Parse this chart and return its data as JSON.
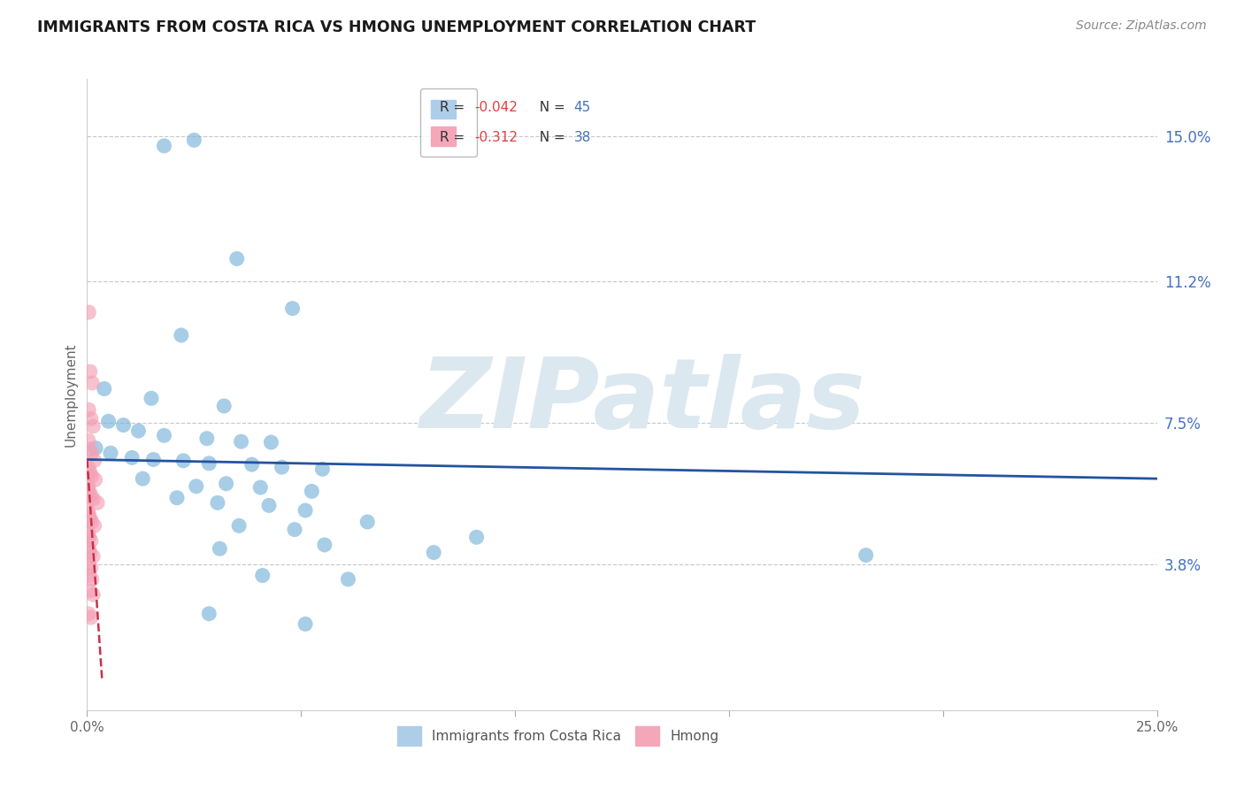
{
  "title": "IMMIGRANTS FROM COSTA RICA VS HMONG UNEMPLOYMENT CORRELATION CHART",
  "source": "Source: ZipAtlas.com",
  "ylabel": "Unemployment",
  "y_tick_values": [
    3.8,
    7.5,
    11.2,
    15.0
  ],
  "xlim": [
    0.0,
    25.0
  ],
  "ylim": [
    0.0,
    16.5
  ],
  "legend_bottom": [
    "Immigrants from Costa Rica",
    "Hmong"
  ],
  "background_color": "#ffffff",
  "grid_color": "#c8c8c8",
  "watermark_text": "ZIPatlas",
  "blue_dot_color": "#7ab3d9",
  "pink_dot_color": "#f4a0b5",
  "trend_blue_color": "#2453a0",
  "trend_pink_color": "#c8304a",
  "r_blue": -0.042,
  "n_blue": 45,
  "r_pink": -0.312,
  "n_pink": 38,
  "legend_label_color": "#555555",
  "legend_r_color": "#e05050",
  "legend_n_color": "#4472c4",
  "right_axis_color": "#4472c4",
  "blue_scatter": [
    [
      1.8,
      14.75
    ],
    [
      2.5,
      14.9
    ],
    [
      3.5,
      11.8
    ],
    [
      2.2,
      9.8
    ],
    [
      4.8,
      10.5
    ],
    [
      0.4,
      8.4
    ],
    [
      1.5,
      8.15
    ],
    [
      3.2,
      7.95
    ],
    [
      0.5,
      7.55
    ],
    [
      0.85,
      7.45
    ],
    [
      1.2,
      7.3
    ],
    [
      1.8,
      7.18
    ],
    [
      2.8,
      7.1
    ],
    [
      3.6,
      7.02
    ],
    [
      4.3,
      7.0
    ],
    [
      0.2,
      6.85
    ],
    [
      0.55,
      6.72
    ],
    [
      1.05,
      6.6
    ],
    [
      1.55,
      6.55
    ],
    [
      2.25,
      6.52
    ],
    [
      2.85,
      6.45
    ],
    [
      3.85,
      6.42
    ],
    [
      4.55,
      6.35
    ],
    [
      5.5,
      6.3
    ],
    [
      1.3,
      6.05
    ],
    [
      2.55,
      5.85
    ],
    [
      3.25,
      5.92
    ],
    [
      4.05,
      5.82
    ],
    [
      5.25,
      5.72
    ],
    [
      2.1,
      5.55
    ],
    [
      3.05,
      5.42
    ],
    [
      4.25,
      5.35
    ],
    [
      5.1,
      5.22
    ],
    [
      3.55,
      4.82
    ],
    [
      4.85,
      4.72
    ],
    [
      6.55,
      4.92
    ],
    [
      3.1,
      4.22
    ],
    [
      5.55,
      4.32
    ],
    [
      8.1,
      4.12
    ],
    [
      4.1,
      3.52
    ],
    [
      6.1,
      3.42
    ],
    [
      2.85,
      2.52
    ],
    [
      5.1,
      2.25
    ],
    [
      9.1,
      4.52
    ],
    [
      18.2,
      4.05
    ]
  ],
  "pink_scatter": [
    [
      0.04,
      10.4
    ],
    [
      0.07,
      8.85
    ],
    [
      0.12,
      8.55
    ],
    [
      0.04,
      7.85
    ],
    [
      0.09,
      7.62
    ],
    [
      0.14,
      7.42
    ],
    [
      0.03,
      7.05
    ],
    [
      0.06,
      6.82
    ],
    [
      0.1,
      6.72
    ],
    [
      0.17,
      6.52
    ],
    [
      0.03,
      6.35
    ],
    [
      0.07,
      6.22
    ],
    [
      0.11,
      6.12
    ],
    [
      0.19,
      6.02
    ],
    [
      0.03,
      5.85
    ],
    [
      0.05,
      5.72
    ],
    [
      0.09,
      5.62
    ],
    [
      0.14,
      5.52
    ],
    [
      0.24,
      5.42
    ],
    [
      0.02,
      5.22
    ],
    [
      0.04,
      5.12
    ],
    [
      0.07,
      5.02
    ],
    [
      0.11,
      4.92
    ],
    [
      0.17,
      4.82
    ],
    [
      0.03,
      4.62
    ],
    [
      0.05,
      4.52
    ],
    [
      0.09,
      4.42
    ],
    [
      0.04,
      4.22
    ],
    [
      0.07,
      4.12
    ],
    [
      0.14,
      4.02
    ],
    [
      0.04,
      3.82
    ],
    [
      0.09,
      3.72
    ],
    [
      0.05,
      3.52
    ],
    [
      0.11,
      3.42
    ],
    [
      0.07,
      3.12
    ],
    [
      0.14,
      3.02
    ],
    [
      0.04,
      2.52
    ],
    [
      0.09,
      2.42
    ]
  ],
  "blue_trend_x0": 0.0,
  "blue_trend_x1": 25.0,
  "blue_trend_y0": 6.55,
  "blue_trend_y1": 6.05,
  "pink_trend_x0": 0.0,
  "pink_trend_x1": 0.35,
  "pink_trend_y0": 6.55,
  "pink_trend_y1": 0.8
}
